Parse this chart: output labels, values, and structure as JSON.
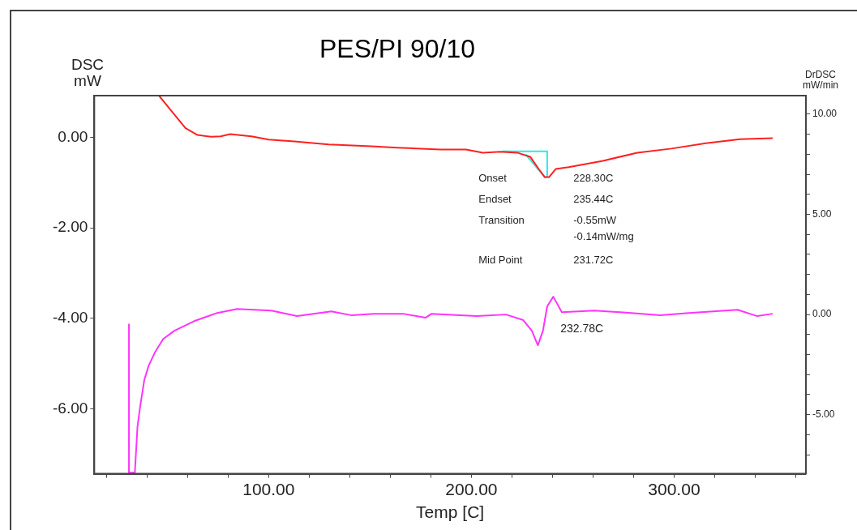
{
  "chart_data": {
    "type": "line",
    "title": "PES/PI 90/10",
    "xlabel": "Temp [C]",
    "ylabel": "DSC\nmW",
    "y2label": "DrDSC\nmW/min",
    "xlim": [
      14,
      365
    ],
    "xticks": [
      {
        "value": 20,
        "label": null
      },
      {
        "value": 40,
        "label": null
      },
      {
        "value": 60,
        "label": null
      },
      {
        "value": 80,
        "label": null
      },
      {
        "value": 100,
        "label": "100.00"
      },
      {
        "value": 120,
        "label": null
      },
      {
        "value": 140,
        "label": null
      },
      {
        "value": 160,
        "label": null
      },
      {
        "value": 180,
        "label": null
      },
      {
        "value": 200,
        "label": "200.00"
      },
      {
        "value": 220,
        "label": null
      },
      {
        "value": 240,
        "label": null
      },
      {
        "value": 260,
        "label": null
      },
      {
        "value": 280,
        "label": null
      },
      {
        "value": 300,
        "label": "300.00"
      },
      {
        "value": 320,
        "label": null
      },
      {
        "value": 340,
        "label": null
      },
      {
        "value": 360,
        "label": null
      }
    ],
    "ylim": [
      -7.43,
      0.92
    ],
    "yticks": [
      {
        "value": 0,
        "label": "0.00"
      },
      {
        "value": -2,
        "label": "-2.00"
      },
      {
        "value": -4,
        "label": "-4.00"
      },
      {
        "value": -6,
        "label": "-6.00"
      }
    ],
    "y2lim": [
      -7.95,
      10.93
    ],
    "y2ticks": [
      {
        "value": -7,
        "label": null
      },
      {
        "value": -6,
        "label": null
      },
      {
        "value": -5,
        "label": "-5.00"
      },
      {
        "value": -4,
        "label": null
      },
      {
        "value": -3,
        "label": null
      },
      {
        "value": -2,
        "label": null
      },
      {
        "value": -1,
        "label": null
      },
      {
        "value": 0,
        "label": "0.00"
      },
      {
        "value": 1,
        "label": null
      },
      {
        "value": 2,
        "label": null
      },
      {
        "value": 3,
        "label": null
      },
      {
        "value": 4,
        "label": null
      },
      {
        "value": 5,
        "label": "5.00"
      },
      {
        "value": 6,
        "label": null
      },
      {
        "value": 7,
        "label": null
      },
      {
        "value": 8,
        "label": null
      },
      {
        "value": 9,
        "label": null
      },
      {
        "value": 10,
        "label": "10.00"
      }
    ],
    "grid": false,
    "legend": false,
    "marker": "none",
    "line_style": "solid",
    "series": [
      {
        "color": "#ff2020",
        "x": [
          45.9,
          53.5,
          59.0,
          64.9,
          71.7,
          76.3,
          81.0,
          91.5,
          100,
          112.7,
          129.6,
          150.7,
          163.4,
          184.6,
          197.3,
          205.7,
          214.2,
          222.6,
          229.0,
          233.2,
          236.2,
          238.3,
          241.6,
          248.0,
          264.9,
          281.8,
          298.7,
          315.6,
          332.6,
          348.6
        ],
        "values": [
          0.92,
          0.5,
          0.2,
          0.05,
          0.01,
          0.02,
          0.07,
          0.02,
          -0.05,
          -0.09,
          -0.16,
          -0.2,
          -0.23,
          -0.27,
          -0.27,
          -0.34,
          -0.32,
          -0.34,
          -0.43,
          -0.7,
          -0.88,
          -0.88,
          -0.7,
          -0.66,
          -0.52,
          -0.34,
          -0.25,
          -0.13,
          -0.04,
          -0.02
        ]
      },
      {
        "color": "#33e6e6",
        "x": [
          215.0,
          237.4,
          237.4,
          236.2,
          226.8
        ],
        "values": [
          -0.31,
          -0.31,
          -0.88,
          -0.88,
          -0.38
        ]
      },
      {
        "color": "#ff33ff",
        "axis": "y2",
        "x": [
          31.1,
          31.1,
          32.3,
          34.0,
          35.3,
          36.6,
          38.7,
          40.8,
          43.8,
          48.0,
          53.5,
          63.2,
          74.6,
          84.4,
          101.3,
          114.0,
          130.9,
          141.0,
          152.0,
          166.4,
          177.4,
          180.3,
          202.7,
          217.1,
          225.6,
          229.8,
          232.8,
          235.3,
          237.4,
          240.4,
          244.6,
          260.7,
          278.9,
          293.2,
          307.2,
          331.3,
          341.0,
          348.6
        ],
        "values": [
          -0.49,
          -7.9,
          -7.9,
          -7.9,
          -5.6,
          -4.6,
          -3.25,
          -2.56,
          -1.91,
          -1.22,
          -0.81,
          -0.33,
          0.08,
          0.28,
          0.2,
          -0.08,
          0.16,
          -0.04,
          0.04,
          0.04,
          -0.16,
          0.04,
          -0.08,
          0.0,
          -0.28,
          -0.81,
          -1.54,
          -0.81,
          0.41,
          0.89,
          0.12,
          0.2,
          0.08,
          -0.04,
          0.08,
          0.24,
          -0.08,
          0.04
        ]
      }
    ],
    "annotations": [
      "Onset",
      "228.30C",
      "Endset",
      "235.44C",
      "Transition",
      "-0.55mW",
      "-0.14mW/mg",
      "Mid Point",
      "231.72C",
      "232.78C"
    ]
  }
}
